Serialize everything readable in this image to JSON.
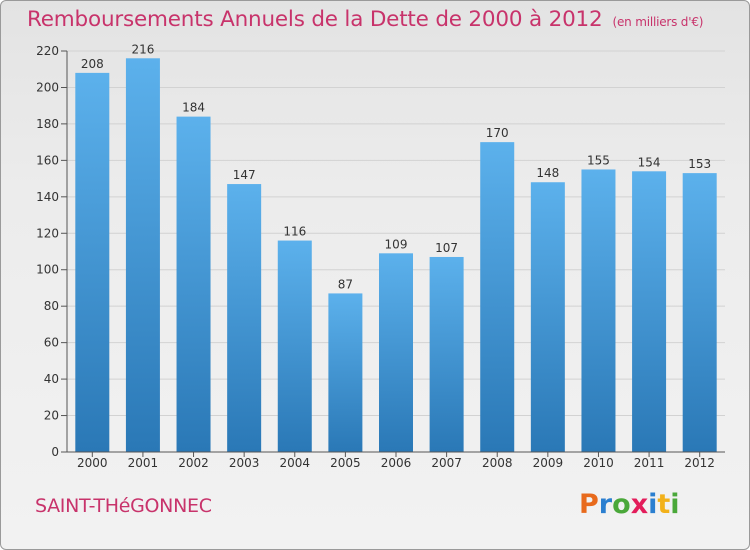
{
  "title": "Remboursements Annuels de la Dette de 2000 à 2012",
  "unit": "(en milliers d'€)",
  "commune": "SAINT-THéGONNEC",
  "logo": {
    "letters": [
      {
        "char": "P",
        "color": "#e86a1c"
      },
      {
        "char": "r",
        "color": "#2b7fd0"
      },
      {
        "char": "o",
        "color": "#4aa83a"
      },
      {
        "char": "x",
        "color": "#e31d5b"
      },
      {
        "char": "i",
        "color": "#2b7fd0"
      },
      {
        "char": "t",
        "color": "#f2b11a"
      },
      {
        "char": "i",
        "color": "#4aa83a"
      }
    ]
  },
  "chart_data": {
    "type": "bar",
    "title": "Remboursements Annuels de la Dette de 2000 à 2012",
    "categories": [
      "2000",
      "2001",
      "2002",
      "2003",
      "2004",
      "2005",
      "2006",
      "2007",
      "2008",
      "2009",
      "2010",
      "2011",
      "2012"
    ],
    "values": [
      208,
      216,
      184,
      147,
      116,
      87,
      109,
      107,
      170,
      148,
      155,
      154,
      153
    ],
    "ylim": [
      0,
      220
    ],
    "yticks": [
      0,
      20,
      40,
      60,
      80,
      100,
      120,
      140,
      160,
      180,
      200,
      220
    ],
    "grid": true,
    "colors": {
      "bar_top": "#5cb1ec",
      "bar_bottom": "#2a78b6",
      "grid": "#d2d2d2",
      "axis": "#555555"
    }
  }
}
